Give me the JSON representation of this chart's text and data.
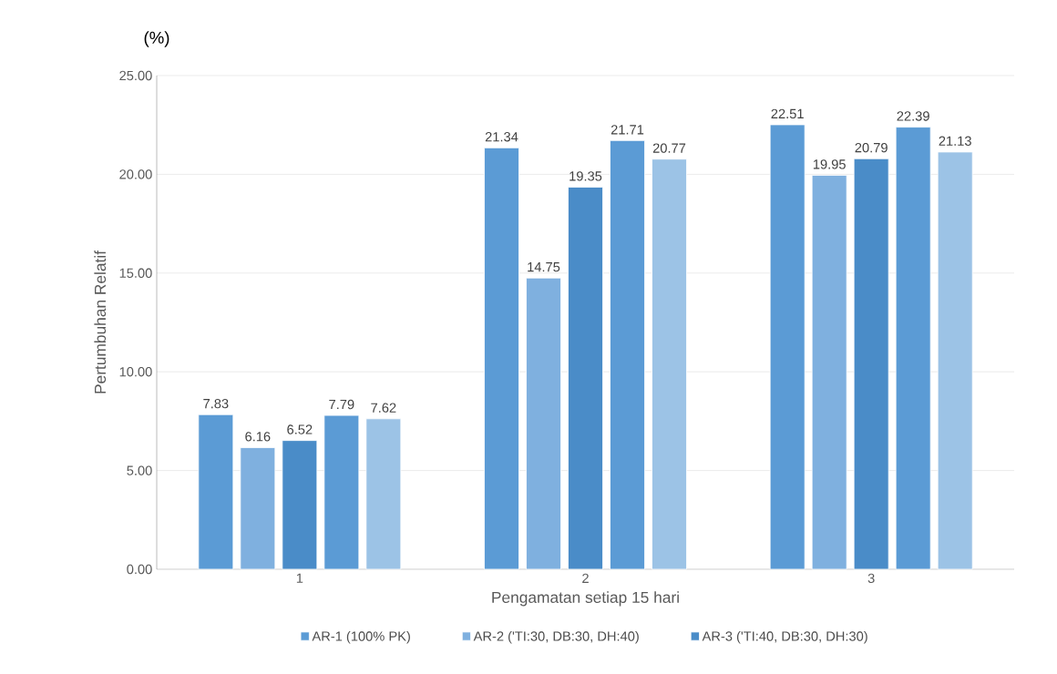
{
  "chart_data": {
    "type": "bar",
    "xlabel": "Pengamatan setiap 15 hari",
    "ylabel": "Pertumbuhan Relatif",
    "annotations": [
      "(%)"
    ],
    "categories": [
      "1",
      "2",
      "3"
    ],
    "series": [
      {
        "name": "AR-1 (100% PK)",
        "color": "#5b9bd5",
        "values": [
          7.83,
          21.34,
          22.51
        ]
      },
      {
        "name": "AR-2 ('TI:30, DB:30, DH:40)",
        "color": "#7fb0df",
        "values": [
          6.16,
          14.75,
          19.95
        ]
      },
      {
        "name": "AR-3 ('TI:40, DB:30, DH:30)",
        "color": "#4a8cc8",
        "values": [
          6.52,
          19.35,
          20.79
        ]
      },
      {
        "color": "#5b9bd5",
        "values": [
          7.79,
          21.71,
          22.39
        ]
      },
      {
        "color": "#9cc3e6",
        "values": [
          7.62,
          20.77,
          21.13
        ]
      }
    ],
    "ylim": [
      0,
      25
    ],
    "yticks": [
      {
        "value": 0,
        "label": "0.00"
      },
      {
        "value": 5,
        "label": "5.00"
      },
      {
        "value": 10,
        "label": "10.00"
      },
      {
        "value": 15,
        "label": "15.00"
      },
      {
        "value": 20,
        "label": "20.00"
      },
      {
        "value": 25,
        "label": "25.00"
      }
    ],
    "grid": "y",
    "legend": "bottom",
    "data_labels": true
  }
}
